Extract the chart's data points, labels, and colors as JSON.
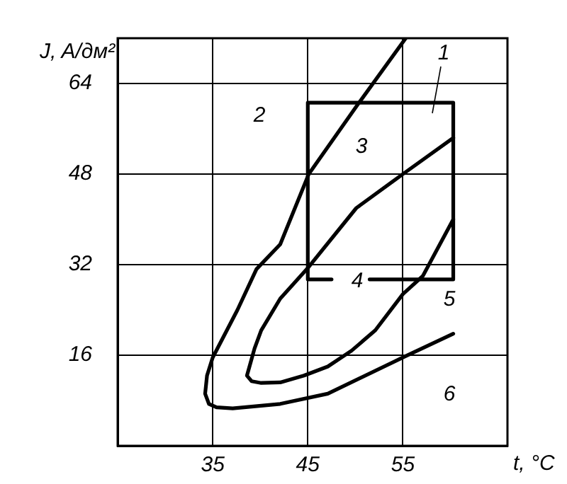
{
  "chart_data": {
    "type": "line",
    "xlabel": "t, °C",
    "ylabel": "J, A/дм²",
    "xlim": [
      25,
      66
    ],
    "ylim": [
      0,
      72
    ],
    "xticks": [
      35,
      45,
      55
    ],
    "yticks": [
      16,
      32,
      48,
      64
    ],
    "grid": true,
    "legend": false,
    "marker": "none",
    "line_style": "solid",
    "series": [
      {
        "color": "#000000",
        "x": [
          55.3,
          50.3,
          45.1,
          42.1,
          39.6,
          37.6,
          35,
          34.4,
          34.2,
          34.6,
          35.4,
          37.1,
          42.1,
          47.1,
          55,
          60.3
        ],
        "values": [
          72,
          60.4,
          48,
          35.6,
          31.2,
          24,
          15.6,
          12.4,
          9.2,
          7.4,
          6.8,
          6.6,
          7.4,
          9.2,
          15.6,
          19.8
        ]
      },
      {
        "color": "#000000",
        "x": [
          60.3,
          55,
          50.1,
          45.1,
          42.1,
          40.1,
          39.4,
          38.6,
          39.1,
          40.1,
          42.1,
          44.6,
          47.1,
          49.6,
          52.1,
          55,
          57.1,
          60.3
        ],
        "values": [
          54.4,
          48,
          42,
          31.6,
          26,
          20.4,
          17.2,
          12.4,
          11.4,
          11.1,
          11.2,
          12.4,
          14,
          16.8,
          20.4,
          26.8,
          30,
          40
        ]
      },
      {
        "color": "#000000",
        "x": [
          47.5,
          45,
          45,
          60.3,
          60.3,
          51.5
        ],
        "values": [
          29.4,
          29.4,
          60.6,
          60.6,
          29.4,
          29.4
        ]
      }
    ],
    "annotations": [
      "1",
      "2",
      "3",
      "4",
      "5",
      "6"
    ]
  }
}
